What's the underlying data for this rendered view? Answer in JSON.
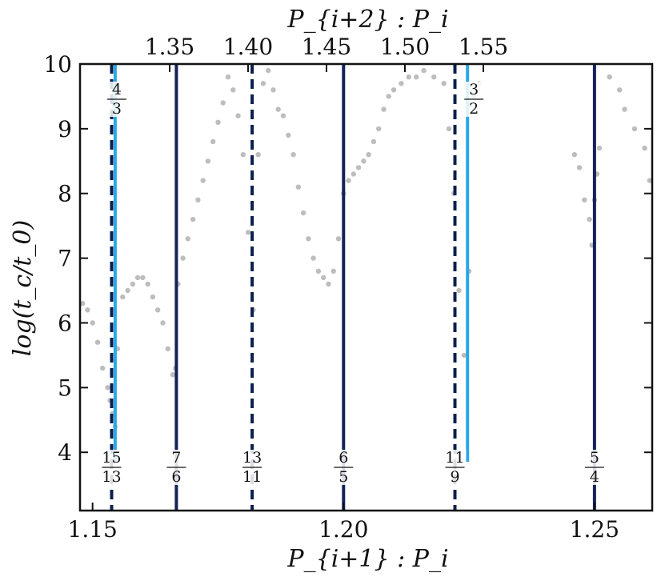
{
  "chart_data": {
    "type": "scatter",
    "title": "",
    "xlabel": "P_{i+1} : P_i",
    "x2label": "P_{i+2} : P_i",
    "ylabel": "log(t_c/t_0)",
    "xlim": [
      1.1475,
      1.2615
    ],
    "ylim": [
      3.1,
      10.0
    ],
    "xticks": [
      {
        "value": 1.15,
        "label": "1.15"
      },
      {
        "value": 1.2,
        "label": "1.20"
      },
      {
        "value": 1.25,
        "label": "1.25"
      }
    ],
    "x2ticks": [
      {
        "value": 1.35,
        "label": "1.35"
      },
      {
        "value": 1.4,
        "label": "1.40"
      },
      {
        "value": 1.45,
        "label": "1.45"
      },
      {
        "value": 1.5,
        "label": "1.50"
      },
      {
        "value": 1.55,
        "label": "1.55"
      }
    ],
    "yticks": [
      {
        "value": 4,
        "label": "4"
      },
      {
        "value": 5,
        "label": "5"
      },
      {
        "value": 6,
        "label": "6"
      },
      {
        "value": 7,
        "label": "7"
      },
      {
        "value": 8,
        "label": "8"
      },
      {
        "value": 9,
        "label": "9"
      },
      {
        "value": 10,
        "label": "10"
      }
    ],
    "point_color": "#bdbdbd",
    "series": [
      {
        "x": [
          1.148,
          1.149,
          1.15,
          1.151,
          1.152,
          1.153,
          1.1535,
          1.154,
          1.1545,
          1.155,
          1.156,
          1.157,
          1.158,
          1.159,
          1.16,
          1.161,
          1.162,
          1.163,
          1.164,
          1.165,
          1.166,
          1.1665,
          1.167,
          1.168,
          1.169,
          1.17,
          1.171,
          1.172,
          1.173,
          1.174,
          1.175,
          1.176,
          1.177,
          1.178,
          1.179,
          1.18,
          1.181,
          1.182,
          1.183,
          1.184,
          1.185,
          1.186,
          1.187,
          1.188,
          1.189,
          1.19,
          1.191,
          1.192,
          1.193,
          1.194,
          1.195,
          1.196,
          1.197,
          1.198,
          1.199,
          1.2,
          1.201,
          1.202,
          1.203,
          1.204,
          1.205,
          1.206,
          1.207,
          1.208,
          1.209,
          1.21,
          1.2115,
          1.213,
          1.2145,
          1.216,
          1.218,
          1.22,
          1.221,
          1.222,
          1.223,
          1.224,
          1.225,
          1.226,
          1.227,
          1.246,
          1.247,
          1.248,
          1.249,
          1.2495,
          1.25,
          1.2505,
          1.251,
          1.253,
          1.255,
          1.256,
          1.258,
          1.26,
          1.261
        ],
        "y": [
          6.3,
          6.2,
          6.0,
          5.7,
          5.3,
          5.0,
          4.8,
          4.6,
          4.4,
          5.6,
          6.4,
          6.5,
          6.6,
          6.7,
          6.7,
          6.6,
          6.4,
          6.2,
          6.0,
          5.6,
          5.2,
          5.3,
          6.6,
          7.0,
          7.3,
          7.6,
          7.9,
          8.2,
          8.5,
          8.8,
          9.1,
          9.4,
          9.8,
          9.6,
          9.2,
          8.6,
          7.4,
          6.2,
          8.6,
          9.7,
          9.9,
          9.6,
          9.3,
          9.2,
          8.9,
          8.6,
          8.1,
          7.7,
          7.3,
          7.0,
          6.8,
          6.7,
          6.6,
          6.8,
          7.3,
          8.0,
          8.2,
          8.3,
          8.4,
          8.5,
          8.6,
          8.8,
          9.0,
          9.3,
          9.5,
          9.6,
          9.7,
          9.8,
          9.8,
          9.9,
          9.8,
          9.7,
          9.0,
          8.0,
          6.5,
          5.5,
          6.8,
          9.5,
          9.7,
          8.6,
          8.4,
          7.9,
          7.6,
          7.2,
          7.9,
          8.3,
          8.7,
          9.8,
          9.6,
          9.3,
          9.0,
          8.7,
          8.2
        ]
      }
    ],
    "resonances": [
      {
        "x": 1.1538,
        "style": "dashed",
        "color": "#0b1f4f",
        "num": "15",
        "den": "13"
      },
      {
        "x": 1.1545,
        "style": "solid",
        "color": "#2aa7e8",
        "num": "4",
        "den": "3"
      },
      {
        "x": 1.1667,
        "style": "solid",
        "color": "#14225a",
        "num": "7",
        "den": "6"
      },
      {
        "x": 1.1818,
        "style": "dashed",
        "color": "#0b1f4f",
        "num": "13",
        "den": "11"
      },
      {
        "x": 1.2,
        "style": "solid",
        "color": "#14225a",
        "num": "6",
        "den": "5"
      },
      {
        "x": 1.2222,
        "style": "dashed",
        "color": "#0b1f4f",
        "num": "11",
        "den": "9"
      },
      {
        "x": 1.2247,
        "style": "solid",
        "color": "#2aa7e8",
        "num": "3",
        "den": "2"
      },
      {
        "x": 1.25,
        "style": "solid",
        "color": "#14225a",
        "num": "5",
        "den": "4"
      }
    ]
  }
}
